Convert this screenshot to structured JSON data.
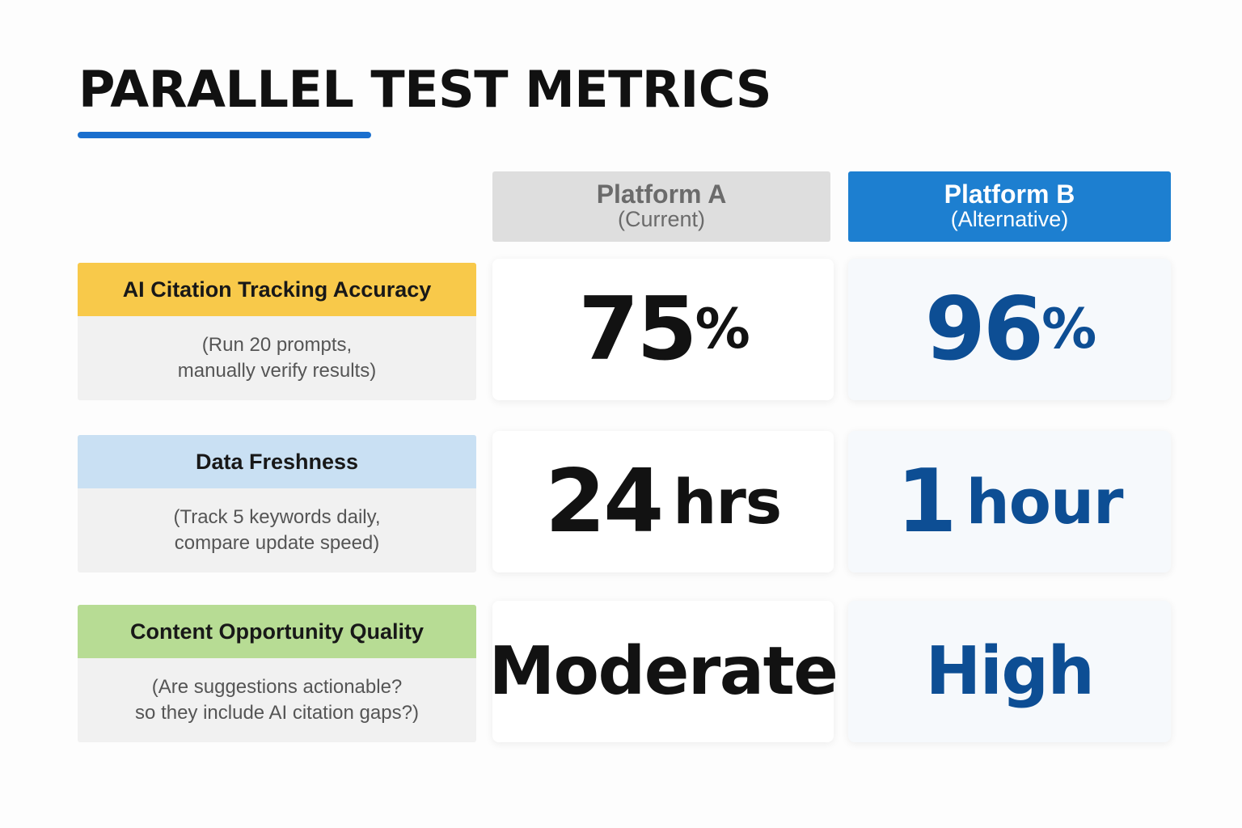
{
  "title": "PARALLEL TEST METRICS",
  "columns": [
    {
      "name": "Platform A",
      "sub": "(Current)"
    },
    {
      "name": "Platform B",
      "sub": "(Alternative)"
    }
  ],
  "metrics": [
    {
      "label": "AI Citation Tracking Accuracy",
      "desc_line1": "(Run 20 prompts,",
      "desc_line2": "manually verify results)",
      "a_num": "75",
      "a_unit": "%",
      "b_num": "96",
      "b_unit": "%"
    },
    {
      "label": "Data Freshness",
      "desc_line1": "(Track 5 keywords daily,",
      "desc_line2": "compare update speed)",
      "a_num": "24",
      "a_unit": "hrs",
      "b_num": "1",
      "b_unit": "hour"
    },
    {
      "label": "Content Opportunity Quality",
      "desc_line1": "(Are suggestions actionable?",
      "desc_line2": "so they include AI citation gaps?)",
      "a_value": "Moderate",
      "b_value": "High"
    }
  ],
  "colors": {
    "accent": "#1a6fce",
    "platform_b": "#1d7fd0",
    "value_b": "#0d4e94",
    "row1_header": "#f8c94a",
    "row2_header": "#c9e0f3",
    "row3_header": "#b7dc94"
  }
}
